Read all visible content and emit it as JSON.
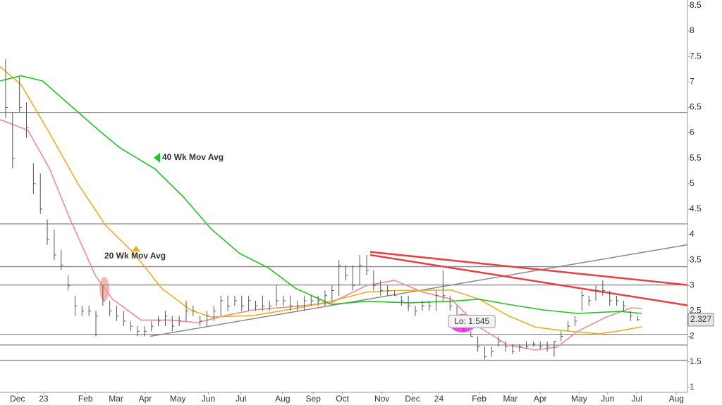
{
  "chart_data": {
    "type": "ohlc",
    "ylim": [
      0.9,
      8.61
    ],
    "yticks": [
      1,
      1.5,
      2,
      2.5,
      3,
      3.5,
      4,
      4.5,
      5,
      5.5,
      6,
      6.5,
      7,
      7.5,
      8,
      8.5
    ],
    "xlim": [
      -5.81,
      93.2
    ],
    "xticks": [
      {
        "value": -3.3,
        "label": "Dec"
      },
      {
        "value": 0.48,
        "label": "23"
      },
      {
        "value": 6.5,
        "label": "Feb"
      },
      {
        "value": 10.9,
        "label": "Mar"
      },
      {
        "value": 15.1,
        "label": "Apr"
      },
      {
        "value": 19.8,
        "label": "May"
      },
      {
        "value": 24.2,
        "label": "Jun"
      },
      {
        "value": 28.9,
        "label": "Jul"
      },
      {
        "value": 34.9,
        "label": "Aug"
      },
      {
        "value": 39.3,
        "label": "Sep"
      },
      {
        "value": 43.5,
        "label": "Oct"
      },
      {
        "value": 49.2,
        "label": "Nov"
      },
      {
        "value": 53.6,
        "label": "Dec"
      },
      {
        "value": 57.4,
        "label": "24"
      },
      {
        "value": 63.2,
        "label": "Feb"
      },
      {
        "value": 67.7,
        "label": "Mar"
      },
      {
        "value": 72.0,
        "label": "Apr"
      },
      {
        "value": 77.6,
        "label": "May"
      },
      {
        "value": 81.7,
        "label": "Jun"
      },
      {
        "value": 85.9,
        "label": "Jul"
      },
      {
        "value": 91.6,
        "label": "Aug"
      }
    ],
    "bar_color": "#555555",
    "x": [
      -5,
      -4,
      -3,
      -2,
      -1,
      0,
      1,
      2,
      3,
      4,
      5,
      6,
      7,
      8,
      9,
      10,
      11,
      12,
      13,
      14,
      15,
      16,
      17,
      18,
      19,
      20,
      21,
      22,
      23,
      24,
      25,
      26,
      27,
      28,
      29,
      30,
      31,
      32,
      33,
      34,
      35,
      36,
      37,
      38,
      39,
      40,
      41,
      42,
      43,
      44,
      45,
      46,
      47,
      48,
      49,
      50,
      51,
      52,
      53,
      54,
      55,
      56,
      57,
      58,
      59,
      60,
      61,
      62,
      63,
      64,
      65,
      66,
      67,
      68,
      69,
      70,
      71,
      72,
      73,
      74,
      75,
      76,
      77,
      78,
      79,
      80,
      81,
      82,
      83,
      84,
      85,
      86
    ],
    "high": [
      7.45,
      6.4,
      7.1,
      6.6,
      5.4,
      5.2,
      4.3,
      4.1,
      3.7,
      3.2,
      2.8,
      2.6,
      2.6,
      2.5,
      3.0,
      2.7,
      2.6,
      2.5,
      2.3,
      2.2,
      2.2,
      2.3,
      2.4,
      2.5,
      2.4,
      2.4,
      2.7,
      2.6,
      2.4,
      2.5,
      2.6,
      2.8,
      2.8,
      2.8,
      2.8,
      2.8,
      2.7,
      2.8,
      2.7,
      3.0,
      2.8,
      2.8,
      2.7,
      2.8,
      2.8,
      2.8,
      2.9,
      3.0,
      3.5,
      3.4,
      3.4,
      3.6,
      3.6,
      3.3,
      3.1,
      3.0,
      2.9,
      2.8,
      2.8,
      2.6,
      2.7,
      2.7,
      2.9,
      3.3,
      2.8,
      2.6,
      2.3,
      2.1,
      2.0,
      1.8,
      1.8,
      2.0,
      1.9,
      1.85,
      1.85,
      1.9,
      1.9,
      1.9,
      1.9,
      1.9,
      2.1,
      2.3,
      2.4,
      2.9,
      2.8,
      3.0,
      3.1,
      2.9,
      2.8,
      2.7,
      2.5,
      2.4
    ],
    "low": [
      6.3,
      5.3,
      6.4,
      5.9,
      4.8,
      4.4,
      3.8,
      3.5,
      3.3,
      2.9,
      2.4,
      2.4,
      2.4,
      2.0,
      2.6,
      2.4,
      2.3,
      2.2,
      2.1,
      2.0,
      2.0,
      2.1,
      2.2,
      2.2,
      2.1,
      2.2,
      2.3,
      2.4,
      2.2,
      2.2,
      2.3,
      2.4,
      2.5,
      2.6,
      2.5,
      2.5,
      2.5,
      2.5,
      2.5,
      2.6,
      2.6,
      2.5,
      2.5,
      2.5,
      2.6,
      2.6,
      2.6,
      2.7,
      2.8,
      3.1,
      2.9,
      3.0,
      3.2,
      2.9,
      2.8,
      2.8,
      2.8,
      2.6,
      2.5,
      2.4,
      2.5,
      2.5,
      2.5,
      2.7,
      2.5,
      2.3,
      2.1,
      2.0,
      1.7,
      1.545,
      1.6,
      1.8,
      1.7,
      1.65,
      1.7,
      1.75,
      1.8,
      1.75,
      1.7,
      1.6,
      1.9,
      2.1,
      2.2,
      2.5,
      2.6,
      2.7,
      2.8,
      2.6,
      2.6,
      2.5,
      2.3,
      2.3
    ],
    "close": [
      6.5,
      5.5,
      6.5,
      6.1,
      5.0,
      4.5,
      3.9,
      3.6,
      3.4,
      3.0,
      2.6,
      2.5,
      2.5,
      2.4,
      2.7,
      2.5,
      2.4,
      2.3,
      2.2,
      2.1,
      2.1,
      2.2,
      2.3,
      2.4,
      2.2,
      2.3,
      2.5,
      2.5,
      2.3,
      2.4,
      2.5,
      2.7,
      2.6,
      2.7,
      2.6,
      2.7,
      2.6,
      2.6,
      2.6,
      2.7,
      2.7,
      2.6,
      2.6,
      2.7,
      2.7,
      2.7,
      2.8,
      2.9,
      3.4,
      3.2,
      3.0,
      3.4,
      3.3,
      3.0,
      2.9,
      2.9,
      2.8,
      2.7,
      2.6,
      2.5,
      2.6,
      2.6,
      2.8,
      2.8,
      2.6,
      2.4,
      2.2,
      2.0,
      1.8,
      1.6,
      1.7,
      1.9,
      1.8,
      1.7,
      1.8,
      1.8,
      1.85,
      1.8,
      1.8,
      1.9,
      2.0,
      2.2,
      2.3,
      2.8,
      2.7,
      2.9,
      2.9,
      2.7,
      2.7,
      2.6,
      2.4,
      2.327
    ],
    "series": [
      {
        "color": "#f08a9a",
        "x": [
          -5.8,
          -1.8,
          1.3,
          4.3,
          7.9,
          10.4,
          14.5,
          18.6,
          22.6,
          26.7,
          30.7,
          36.8,
          41.9,
          47.0,
          51.0,
          55.1,
          59.2,
          63.2,
          67.3,
          71.3,
          74.4,
          77.4,
          81.5,
          85.1,
          86.6
        ],
        "values": [
          6.26,
          6.05,
          5.3,
          4.3,
          3.2,
          2.73,
          2.32,
          2.32,
          2.27,
          2.41,
          2.52,
          2.59,
          2.66,
          3.0,
          3.1,
          2.87,
          2.73,
          2.18,
          1.83,
          1.73,
          1.79,
          2.1,
          2.38,
          2.56,
          2.55
        ]
      },
      {
        "name": "20 Wk Mov Avg",
        "color": "#e8b020",
        "x": [
          -5.8,
          -2.8,
          1.3,
          5.4,
          9.4,
          13.5,
          17.5,
          21.6,
          24.6,
          30.7,
          36.8,
          41.9,
          47.0,
          51.0,
          59.2,
          63.2,
          67.3,
          71.3,
          75.4,
          80.5,
          83.5,
          86.6
        ],
        "values": [
          7.3,
          6.95,
          6.0,
          5.0,
          4.18,
          3.63,
          2.94,
          2.52,
          2.38,
          2.41,
          2.55,
          2.69,
          2.87,
          2.9,
          2.91,
          2.73,
          2.41,
          2.18,
          2.11,
          2.05,
          2.11,
          2.19
        ]
      },
      {
        "name": "40 Wk Mov Avg",
        "color": "#22c322",
        "x": [
          -5.8,
          -2.8,
          0.3,
          4.3,
          8.4,
          11.4,
          16.5,
          20.6,
          24.6,
          28.7,
          32.8,
          36.8,
          41.9,
          47.0,
          53.1,
          59.2,
          63.2,
          67.3,
          72.4,
          77.4,
          83.5,
          86.6
        ],
        "values": [
          7.02,
          7.12,
          7.02,
          6.54,
          6.05,
          5.71,
          5.29,
          4.74,
          4.11,
          3.63,
          3.35,
          2.94,
          2.63,
          2.69,
          2.66,
          2.69,
          2.73,
          2.63,
          2.52,
          2.45,
          2.49,
          2.45
        ]
      }
    ],
    "hlines": [
      6.4,
      4.21,
      3.37,
      3.01,
      2.04,
      1.83,
      1.53
    ],
    "trendlines": [
      {
        "color": "#888888",
        "x": [
          15.8,
          93.2
        ],
        "values": [
          2.0,
          3.8
        ]
      },
      {
        "color": "#e84040",
        "x": [
          47.5,
          93.2
        ],
        "values": [
          3.66,
          3.01
        ]
      },
      {
        "color": "#e84040",
        "x": [
          47.5,
          93.2
        ],
        "values": [
          3.6,
          2.61
        ]
      }
    ],
    "low_annotation": "Lo: 1.545"
  }
}
